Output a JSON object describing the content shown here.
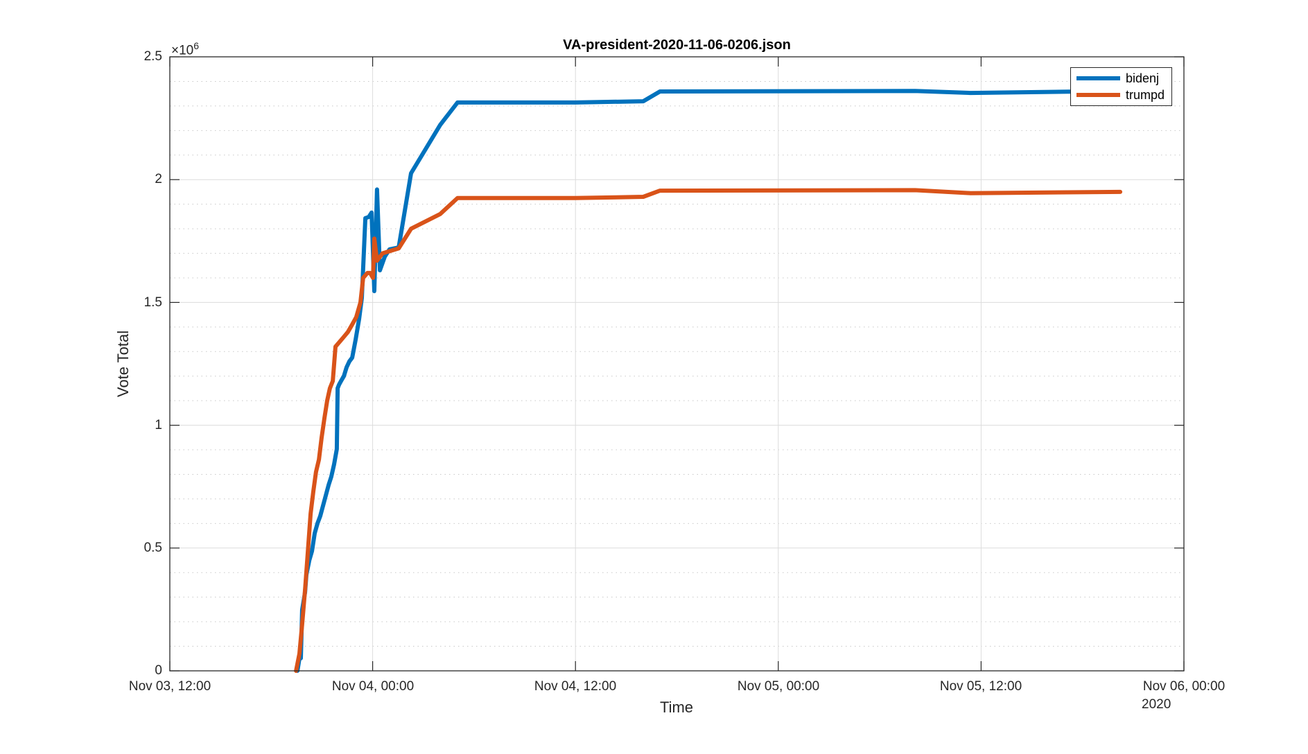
{
  "chart_data": {
    "type": "line",
    "title": "VA-president-2020-11-06-0206.json",
    "xlabel": "Time",
    "ylabel": "Vote Total",
    "y_exponent_label": "×10",
    "y_exponent_power": "6",
    "x_units": "hours since Nov 03 2020, 12:00",
    "xlim": [
      0,
      60
    ],
    "ylim": [
      0,
      2500000
    ],
    "x_ticks": [
      {
        "value": 0,
        "label": "Nov 03, 12:00"
      },
      {
        "value": 12,
        "label": "Nov 04, 00:00"
      },
      {
        "value": 24,
        "label": "Nov 04, 12:00"
      },
      {
        "value": 36,
        "label": "Nov 05, 00:00"
      },
      {
        "value": 48,
        "label": "Nov 05, 12:00"
      },
      {
        "value": 60,
        "label": "Nov 06, 00:00"
      }
    ],
    "x_secondary_label": "2020",
    "y_ticks": [
      {
        "value": 0,
        "label": "0"
      },
      {
        "value": 500000,
        "label": "0.5"
      },
      {
        "value": 1000000,
        "label": "1"
      },
      {
        "value": 1500000,
        "label": "1.5"
      },
      {
        "value": 2000000,
        "label": "2"
      },
      {
        "value": 2500000,
        "label": "2.5"
      }
    ],
    "grid": true,
    "minor_grid": true,
    "legend_position": "northeast",
    "series": [
      {
        "name": "bidenj",
        "color": "#0072BD",
        "points": [
          [
            7.55,
            0
          ],
          [
            7.67,
            51000
          ],
          [
            7.75,
            51000
          ],
          [
            7.83,
            248000
          ],
          [
            8.0,
            320000
          ],
          [
            8.08,
            391000
          ],
          [
            8.25,
            450000
          ],
          [
            8.41,
            488000
          ],
          [
            8.57,
            560000
          ],
          [
            8.74,
            601000
          ],
          [
            8.9,
            630000
          ],
          [
            9.06,
            671000
          ],
          [
            9.23,
            715000
          ],
          [
            9.39,
            756000
          ],
          [
            9.55,
            790000
          ],
          [
            9.72,
            841000
          ],
          [
            9.88,
            903000
          ],
          [
            9.93,
            1151000
          ],
          [
            10.01,
            1165000
          ],
          [
            10.13,
            1180000
          ],
          [
            10.3,
            1200000
          ],
          [
            10.46,
            1236000
          ],
          [
            10.62,
            1260000
          ],
          [
            10.79,
            1275000
          ],
          [
            10.99,
            1348000
          ],
          [
            11.2,
            1433000
          ],
          [
            11.36,
            1518000
          ],
          [
            11.57,
            1843000
          ],
          [
            11.77,
            1848000
          ],
          [
            11.94,
            1866000
          ],
          [
            12.1,
            1546000
          ],
          [
            12.26,
            1960000
          ],
          [
            12.43,
            1631000
          ],
          [
            12.72,
            1687000
          ],
          [
            13.0,
            1716000
          ],
          [
            13.54,
            1724000
          ],
          [
            14.27,
            2026000
          ],
          [
            16.0,
            2223000
          ],
          [
            17.02,
            2314000
          ],
          [
            24.0,
            2314000
          ],
          [
            28.01,
            2319000
          ],
          [
            29.0,
            2359000
          ],
          [
            44.09,
            2361000
          ],
          [
            47.37,
            2353000
          ],
          [
            56.23,
            2361000
          ]
        ]
      },
      {
        "name": "trumpd",
        "color": "#D95319",
        "points": [
          [
            7.47,
            0
          ],
          [
            7.67,
            70000
          ],
          [
            7.83,
            190000
          ],
          [
            8.0,
            330000
          ],
          [
            8.16,
            480000
          ],
          [
            8.33,
            640000
          ],
          [
            8.49,
            730000
          ],
          [
            8.65,
            810000
          ],
          [
            8.82,
            860000
          ],
          [
            8.98,
            950000
          ],
          [
            9.15,
            1030000
          ],
          [
            9.31,
            1100000
          ],
          [
            9.47,
            1150000
          ],
          [
            9.64,
            1180000
          ],
          [
            9.8,
            1320000
          ],
          [
            10.05,
            1340000
          ],
          [
            10.3,
            1360000
          ],
          [
            10.54,
            1380000
          ],
          [
            10.79,
            1410000
          ],
          [
            11.03,
            1440000
          ],
          [
            11.28,
            1500000
          ],
          [
            11.44,
            1600000
          ],
          [
            11.69,
            1620000
          ],
          [
            11.85,
            1620000
          ],
          [
            12.02,
            1600000
          ],
          [
            12.1,
            1760000
          ],
          [
            12.26,
            1670000
          ],
          [
            12.59,
            1700000
          ],
          [
            13.54,
            1720000
          ],
          [
            14.27,
            1800000
          ],
          [
            16.0,
            1860000
          ],
          [
            17.02,
            1925000
          ],
          [
            24.0,
            1925000
          ],
          [
            28.01,
            1930000
          ],
          [
            29.0,
            1955000
          ],
          [
            44.09,
            1957000
          ],
          [
            47.37,
            1945000
          ],
          [
            56.23,
            1950000
          ]
        ]
      }
    ]
  },
  "legend": {
    "items": [
      {
        "label": "bidenj",
        "color": "#0072BD"
      },
      {
        "label": "trumpd",
        "color": "#D95319"
      }
    ]
  }
}
